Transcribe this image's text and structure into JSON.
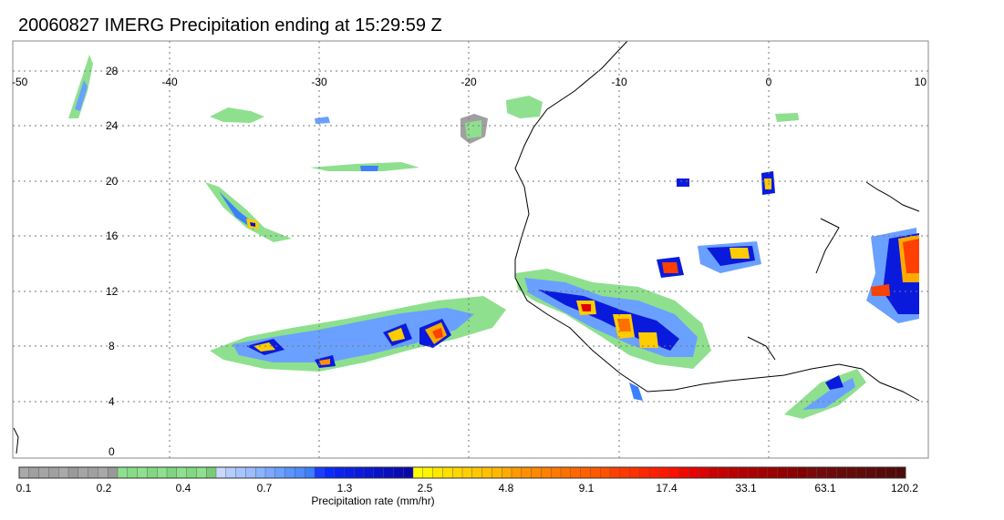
{
  "title": "20060827 IMERG Precipitation ending at 15:29:59 Z",
  "map": {
    "lon_ticks": [
      "-50",
      "-40",
      "-30",
      "-20",
      "-10",
      "0",
      "10"
    ],
    "lat_ticks": [
      "28",
      "24",
      "20",
      "16",
      "12",
      "8",
      "4",
      "0"
    ],
    "lon_range": [
      -50,
      10
    ],
    "lat_range": [
      -1,
      30
    ],
    "grid": "dotted",
    "coastline_color": "#000000"
  },
  "colorbar": {
    "title": "Precipitation rate (mm/hr)",
    "tick_labels": [
      "0.1",
      "0.2",
      "0.4",
      "0.7",
      "1.3",
      "2.5",
      "4.8",
      "9.1",
      "17.4",
      "33.1",
      "63.1",
      "120.2"
    ],
    "groups": [
      {
        "colors": [
          "#a9a9a9",
          "#a0a0a0",
          "#a5a5a5",
          "#a0a0a0",
          "#a9a9a9",
          "#9a9a9a",
          "#a5a5a5",
          "#a0a0a0",
          "#a8a8a8",
          "#999999"
        ]
      },
      {
        "colors": [
          "#8ee08e",
          "#86dc86",
          "#8ee08e",
          "#80d880",
          "#8ee08e",
          "#7fd47f",
          "#8ee08e",
          "#80d880",
          "#8ee08e",
          "#78cc78"
        ]
      },
      {
        "colors": [
          "#c8d8ff",
          "#b4ccff",
          "#a8c4ff",
          "#9cbcff",
          "#8ab4ff",
          "#7ca8ff",
          "#6aa0ff",
          "#5a94ff",
          "#4e8cff",
          "#3c80ff"
        ]
      },
      {
        "colors": [
          "#1a3cff",
          "#0a2aff",
          "#0a22f0",
          "#0a1ee6",
          "#0a1adc",
          "#0a16d2",
          "#0a12c8",
          "#0a0ebe",
          "#0a0ab4",
          "#0808aa"
        ]
      },
      {
        "colors": [
          "#ffff00",
          "#fff400",
          "#ffe800",
          "#ffe000",
          "#ffd800",
          "#ffd000",
          "#ffc800",
          "#ffc000",
          "#ffb800",
          "#ffaa00"
        ]
      },
      {
        "colors": [
          "#ff9a00",
          "#ff9000",
          "#ff8800",
          "#ff8000",
          "#ff7800",
          "#ff7000",
          "#ff6800",
          "#ff6000",
          "#ff5800",
          "#ff5000"
        ]
      },
      {
        "colors": [
          "#ff4000",
          "#ff3800",
          "#ff3000",
          "#ff2800",
          "#ff2000",
          "#ff1800",
          "#ff1000",
          "#f00800",
          "#e80000",
          "#e00000"
        ]
      },
      {
        "colors": [
          "#cc0000",
          "#c40000",
          "#bc0000",
          "#b40000",
          "#ac0000",
          "#a40000",
          "#9c0000",
          "#940000",
          "#8c0000",
          "#840000"
        ]
      },
      {
        "colors": [
          "#7a0a0a",
          "#740a0a",
          "#6e0a0a",
          "#680a0a",
          "#640a0a",
          "#600a0a",
          "#5c0a0a",
          "#580a0a",
          "#540a0a",
          "#500a0a"
        ]
      }
    ]
  }
}
